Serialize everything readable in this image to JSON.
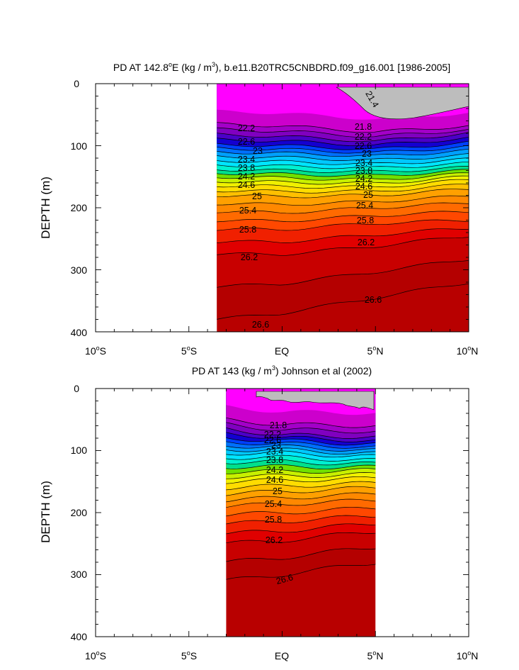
{
  "charts": [
    {
      "title_main": "PD AT 142.8",
      "title_deg": "o",
      "title_after_deg": "E (kg / m",
      "title_sup": "3",
      "title_end": "), b.e11.B20TRC5CNBDRD.f09_g16.001 [1986-2005]",
      "ylabel": "DEPTH (m)",
      "x_ticks": [
        {
          "label": "10",
          "deg": "o",
          "dir": "S"
        },
        {
          "label": "5",
          "deg": "o",
          "dir": "S"
        },
        {
          "label": "EQ",
          "deg": "",
          "dir": ""
        },
        {
          "label": "5",
          "deg": "o",
          "dir": "N"
        },
        {
          "label": "10",
          "deg": "o",
          "dir": "N"
        }
      ],
      "y_ticks": [
        "0",
        "100",
        "200",
        "300",
        "400"
      ],
      "contour_labels": [
        "22.2",
        "22.6",
        "23",
        "23.4",
        "23.8",
        "24.2",
        "24.6",
        "25",
        "25.4",
        "25.8",
        "26.2",
        "26.6",
        "21.8",
        "22.2",
        "22.6",
        "23",
        "23.4",
        "23.8",
        "24.2",
        "24.6",
        "25",
        "25.4",
        "25.8",
        "26.2",
        "26.6",
        "21.4"
      ]
    },
    {
      "title_main": "PD AT 143 (kg / m",
      "title_sup": "3",
      "title_end": ") Johnson et al (2002)",
      "ylabel": "DEPTH (m)",
      "x_ticks": [
        {
          "label": "10",
          "deg": "o",
          "dir": "S"
        },
        {
          "label": "5",
          "deg": "o",
          "dir": "S"
        },
        {
          "label": "EQ",
          "deg": "",
          "dir": ""
        },
        {
          "label": "5",
          "deg": "o",
          "dir": "N"
        },
        {
          "label": "10",
          "deg": "o",
          "dir": "N"
        }
      ],
      "y_ticks": [
        "0",
        "100",
        "200",
        "300",
        "400"
      ],
      "contour_labels": [
        "21.8",
        "22.2",
        "22.6",
        "23",
        "23.4",
        "23.8",
        "24.2",
        "24.6",
        "25",
        "25.4",
        "25.8",
        "26.2",
        "26.6"
      ]
    }
  ],
  "chart_data": [
    {
      "type": "heatmap",
      "subtype": "filled-contour",
      "x_range_lat": [
        -10,
        10
      ],
      "y_range_depth_m": [
        0,
        400
      ],
      "y_inverted": true,
      "data_x_extent_lat": [
        -3.5,
        10
      ],
      "contour_levels": [
        21.4,
        21.6,
        21.8,
        22.0,
        22.2,
        22.4,
        22.6,
        22.8,
        23.0,
        23.2,
        23.4,
        23.6,
        23.8,
        24.0,
        24.2,
        24.4,
        24.6,
        24.8,
        25.0,
        25.2,
        25.4,
        25.6,
        25.8,
        26.0,
        26.2,
        26.4,
        26.6,
        26.8
      ],
      "isopycnal_depths_m": [
        {
          "level": 21.8,
          "depth_left": 65,
          "depth_eq": 68,
          "depth_5N": 78,
          "depth_10N": 68
        },
        {
          "level": 22.2,
          "depth_left": 82,
          "depth_eq": 85,
          "depth_5N": 93,
          "depth_10N": 80
        },
        {
          "level": 22.6,
          "depth_left": 98,
          "depth_eq": 100,
          "depth_5N": 106,
          "depth_10N": 95
        },
        {
          "level": 23.0,
          "depth_left": 110,
          "depth_eq": 112,
          "depth_5N": 117,
          "depth_10N": 108
        },
        {
          "level": 23.4,
          "depth_left": 124,
          "depth_eq": 126,
          "depth_5N": 130,
          "depth_10N": 122
        },
        {
          "level": 23.8,
          "depth_left": 138,
          "depth_eq": 140,
          "depth_5N": 142,
          "depth_10N": 135
        },
        {
          "level": 24.2,
          "depth_left": 150,
          "depth_eq": 152,
          "depth_5N": 155,
          "depth_10N": 145
        },
        {
          "level": 24.6,
          "depth_left": 164,
          "depth_eq": 166,
          "depth_5N": 167,
          "depth_10N": 155
        },
        {
          "level": 25.0,
          "depth_left": 180,
          "depth_eq": 182,
          "depth_5N": 180,
          "depth_10N": 170
        },
        {
          "level": 25.4,
          "depth_left": 206,
          "depth_eq": 208,
          "depth_5N": 200,
          "depth_10N": 192
        },
        {
          "level": 25.8,
          "depth_left": 235,
          "depth_eq": 235,
          "depth_5N": 225,
          "depth_10N": 220
        },
        {
          "level": 26.2,
          "depth_left": 275,
          "depth_eq": 275,
          "depth_5N": 262,
          "depth_10N": 245
        },
        {
          "level": 26.6,
          "depth_left": 380,
          "depth_eq": 370,
          "depth_5N": 345,
          "depth_10N": 320
        }
      ]
    },
    {
      "type": "heatmap",
      "subtype": "filled-contour",
      "x_range_lat": [
        -10,
        10
      ],
      "y_range_depth_m": [
        0,
        400
      ],
      "y_inverted": true,
      "data_x_extent_lat": [
        -3,
        5
      ],
      "contour_levels": [
        21.4,
        21.6,
        21.8,
        22.0,
        22.2,
        22.4,
        22.6,
        22.8,
        23.0,
        23.2,
        23.4,
        23.6,
        23.8,
        24.0,
        24.2,
        24.4,
        24.6,
        24.8,
        25.0,
        25.2,
        25.4,
        25.6,
        25.8,
        26.0,
        26.2,
        26.4,
        26.6,
        26.8
      ],
      "isopycnal_depths_m": [
        {
          "level": 21.8,
          "depth_left": 50,
          "depth_eq": 58,
          "depth_5N": 60
        },
        {
          "level": 22.2,
          "depth_left": 65,
          "depth_eq": 75,
          "depth_5N": 78
        },
        {
          "level": 22.6,
          "depth_left": 80,
          "depth_eq": 84,
          "depth_5N": 90
        },
        {
          "level": 23.0,
          "depth_left": 92,
          "depth_eq": 94,
          "depth_5N": 100
        },
        {
          "level": 23.4,
          "depth_left": 104,
          "depth_eq": 104,
          "depth_5N": 110
        },
        {
          "level": 23.8,
          "depth_left": 118,
          "depth_eq": 118,
          "depth_5N": 122
        },
        {
          "level": 24.2,
          "depth_left": 134,
          "depth_eq": 134,
          "depth_5N": 132
        },
        {
          "level": 24.6,
          "depth_left": 150,
          "depth_eq": 148,
          "depth_5N": 145
        },
        {
          "level": 25.0,
          "depth_left": 170,
          "depth_eq": 166,
          "depth_5N": 160
        },
        {
          "level": 25.4,
          "depth_left": 190,
          "depth_eq": 186,
          "depth_5N": 180
        },
        {
          "level": 25.8,
          "depth_left": 218,
          "depth_eq": 214,
          "depth_5N": 205
        },
        {
          "level": 26.2,
          "depth_left": 250,
          "depth_eq": 245,
          "depth_5N": 230
        },
        {
          "level": 26.6,
          "depth_left": 310,
          "depth_eq": 300,
          "depth_5N": 280
        }
      ]
    }
  ]
}
